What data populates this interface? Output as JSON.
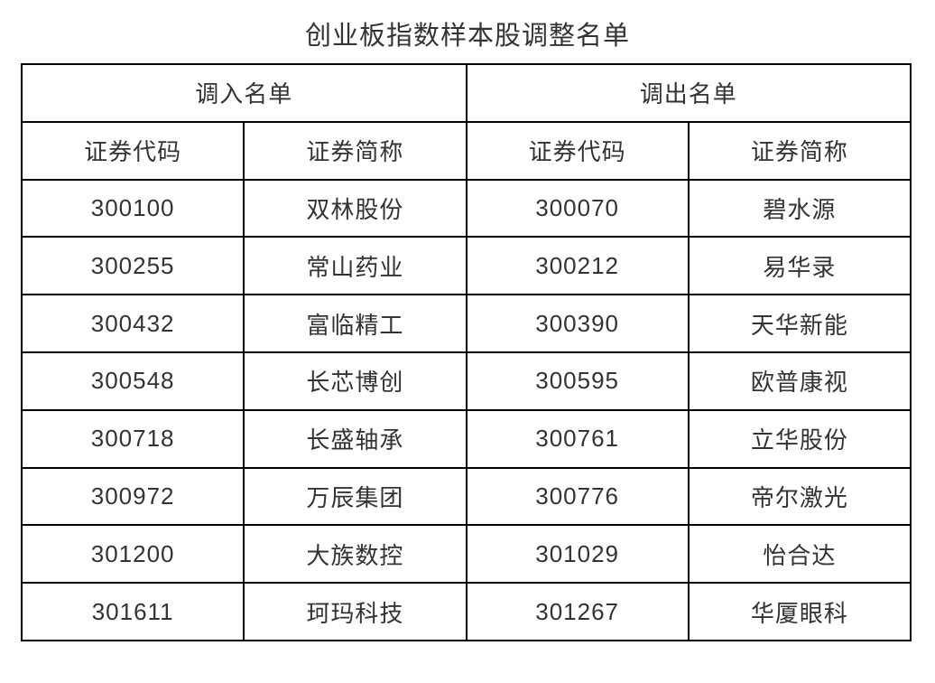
{
  "title": "创业板指数样本股调整名单",
  "table": {
    "group_headers": {
      "in": "调入名单",
      "out": "调出名单"
    },
    "column_headers": [
      "证券代码",
      "证券简称",
      "证券代码",
      "证券简称"
    ],
    "rows": [
      {
        "in_code": "300100",
        "in_name": "双林股份",
        "out_code": "300070",
        "out_name": "碧水源"
      },
      {
        "in_code": "300255",
        "in_name": "常山药业",
        "out_code": "300212",
        "out_name": "易华录"
      },
      {
        "in_code": "300432",
        "in_name": "富临精工",
        "out_code": "300390",
        "out_name": "天华新能"
      },
      {
        "in_code": "300548",
        "in_name": "长芯博创",
        "out_code": "300595",
        "out_name": "欧普康视"
      },
      {
        "in_code": "300718",
        "in_name": "长盛轴承",
        "out_code": "300761",
        "out_name": "立华股份"
      },
      {
        "in_code": "300972",
        "in_name": "万辰集团",
        "out_code": "300776",
        "out_name": "帝尔激光"
      },
      {
        "in_code": "301200",
        "in_name": "大族数控",
        "out_code": "301029",
        "out_name": "怡合达"
      },
      {
        "in_code": "301611",
        "in_name": "珂玛科技",
        "out_code": "301267",
        "out_name": "华厦眼科"
      }
    ]
  },
  "colors": {
    "border": "#000000",
    "text": "#333333",
    "background": "#ffffff"
  }
}
